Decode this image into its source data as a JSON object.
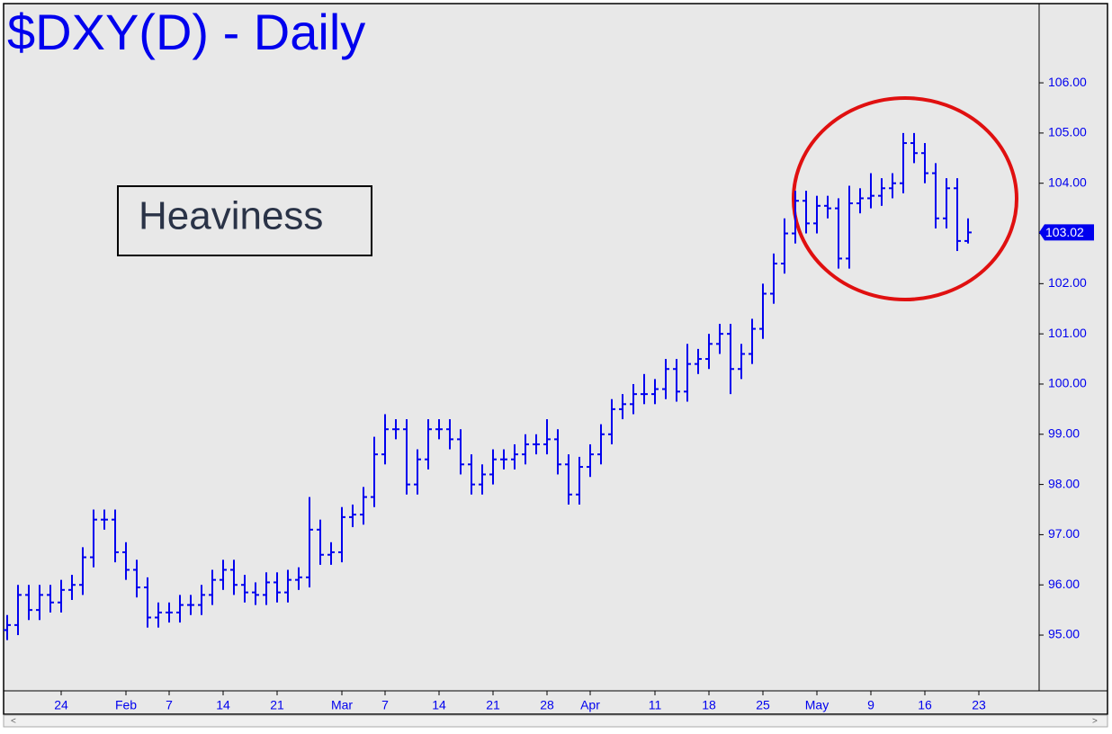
{
  "chart_data": {
    "type": "ohlc",
    "title": "$DXY(D) - Daily",
    "annotation": "Heaviness",
    "color": "#0000ee",
    "categories": [
      null,
      null,
      null,
      null,
      null,
      "24",
      null,
      null,
      null,
      null,
      null,
      "Feb",
      null,
      null,
      null,
      "7",
      null,
      null,
      null,
      null,
      "14",
      null,
      null,
      null,
      null,
      "21",
      null,
      null,
      null,
      null,
      null,
      "Mar",
      null,
      null,
      null,
      "7",
      null,
      null,
      null,
      null,
      "14",
      null,
      null,
      null,
      null,
      "21",
      null,
      null,
      null,
      null,
      "28",
      null,
      null,
      null,
      "Apr",
      null,
      null,
      null,
      null,
      null,
      "11",
      null,
      null,
      null,
      null,
      "18",
      null,
      null,
      null,
      null,
      "25",
      null,
      null,
      null,
      null,
      "May",
      null,
      null,
      null,
      null,
      "9",
      null,
      null,
      null,
      null,
      "16",
      null,
      null,
      null,
      null,
      "23"
    ],
    "open": [
      95.1,
      95.2,
      95.8,
      95.5,
      95.8,
      95.65,
      95.9,
      96.0,
      96.55,
      97.3,
      97.3,
      96.65,
      96.3,
      95.95,
      95.35,
      95.45,
      95.45,
      95.6,
      95.6,
      95.8,
      96.1,
      96.3,
      96.0,
      95.85,
      95.8,
      96.05,
      95.85,
      96.1,
      96.15,
      97.1,
      96.6,
      96.65,
      97.35,
      97.4,
      97.75,
      98.6,
      99.1,
      99.1,
      98.0,
      98.5,
      99.1,
      99.1,
      98.9,
      98.4,
      98.0,
      98.2,
      98.5,
      98.5,
      98.6,
      98.8,
      98.8,
      98.9,
      98.4,
      97.8,
      98.35,
      98.6,
      99.0,
      99.5,
      99.6,
      99.8,
      99.8,
      99.9,
      100.3,
      99.85,
      100.4,
      100.5,
      100.8,
      101.0,
      100.3,
      100.6,
      101.1,
      101.8,
      102.4,
      103.0,
      103.65,
      103.2,
      103.55,
      103.5,
      102.5,
      103.6,
      103.7,
      103.75,
      103.9,
      104.0,
      104.8,
      104.6,
      104.2,
      103.3,
      103.9,
      102.85,
      null
    ],
    "high": [
      95.4,
      96.0,
      96.0,
      96.0,
      96.0,
      96.1,
      96.2,
      96.75,
      97.5,
      97.5,
      97.5,
      96.85,
      96.5,
      96.15,
      95.65,
      95.65,
      95.8,
      95.8,
      96.0,
      96.3,
      96.5,
      96.5,
      96.2,
      96.05,
      96.25,
      96.25,
      96.3,
      96.35,
      97.75,
      97.3,
      96.85,
      97.55,
      97.6,
      97.95,
      98.95,
      99.4,
      99.3,
      99.3,
      98.7,
      99.3,
      99.3,
      99.3,
      99.1,
      98.6,
      98.4,
      98.7,
      98.7,
      98.8,
      99.0,
      99.0,
      99.3,
      99.1,
      98.6,
      98.55,
      98.8,
      99.2,
      99.7,
      99.8,
      100.0,
      100.2,
      100.1,
      100.5,
      100.5,
      100.8,
      100.7,
      101.0,
      101.2,
      101.2,
      100.8,
      101.3,
      102.0,
      102.6,
      103.3,
      103.85,
      103.85,
      103.75,
      103.75,
      103.7,
      103.95,
      103.9,
      104.2,
      104.1,
      104.2,
      105.0,
      105.0,
      104.8,
      104.4,
      104.1,
      104.1,
      103.3,
      null
    ],
    "low": [
      94.9,
      95.0,
      95.3,
      95.3,
      95.45,
      95.45,
      95.7,
      95.8,
      96.35,
      97.1,
      96.45,
      96.1,
      95.75,
      95.15,
      95.15,
      95.25,
      95.25,
      95.4,
      95.4,
      95.6,
      95.9,
      95.8,
      95.65,
      95.6,
      95.6,
      95.65,
      95.65,
      95.9,
      95.95,
      96.4,
      96.4,
      96.45,
      97.15,
      97.2,
      97.55,
      98.4,
      98.9,
      97.8,
      97.8,
      98.3,
      98.9,
      98.7,
      98.2,
      97.8,
      97.8,
      98.0,
      98.3,
      98.3,
      98.4,
      98.6,
      98.6,
      98.2,
      97.6,
      97.6,
      98.15,
      98.4,
      98.8,
      99.3,
      99.4,
      99.6,
      99.6,
      99.7,
      99.65,
      99.65,
      100.2,
      100.3,
      100.6,
      99.8,
      100.1,
      100.4,
      100.9,
      101.6,
      102.2,
      102.8,
      103.0,
      103.0,
      103.3,
      102.3,
      102.3,
      103.4,
      103.5,
      103.55,
      103.7,
      103.8,
      104.4,
      104.0,
      103.1,
      103.1,
      102.65,
      102.8,
      null
    ],
    "close": [
      95.2,
      95.8,
      95.5,
      95.8,
      95.65,
      95.9,
      96.0,
      96.55,
      97.3,
      97.3,
      96.65,
      96.3,
      95.95,
      95.35,
      95.45,
      95.45,
      95.6,
      95.6,
      95.8,
      96.1,
      96.3,
      96.0,
      95.85,
      95.8,
      96.05,
      95.85,
      96.1,
      96.15,
      97.1,
      96.6,
      96.65,
      97.35,
      97.4,
      97.75,
      98.6,
      99.1,
      99.1,
      98.0,
      98.5,
      99.1,
      99.1,
      98.9,
      98.4,
      98.0,
      98.2,
      98.5,
      98.5,
      98.6,
      98.8,
      98.8,
      98.9,
      98.4,
      97.8,
      98.35,
      98.6,
      99.0,
      99.5,
      99.6,
      99.8,
      99.8,
      99.9,
      100.3,
      99.85,
      100.4,
      100.5,
      100.8,
      101.0,
      100.3,
      100.6,
      101.1,
      101.8,
      102.4,
      103.0,
      103.65,
      103.2,
      103.55,
      103.5,
      102.5,
      103.6,
      103.7,
      103.75,
      103.9,
      104.0,
      104.8,
      104.6,
      104.2,
      103.3,
      103.9,
      102.85,
      103.02,
      null
    ],
    "ylim": [
      93.89,
      107.56
    ],
    "yticks": [
      {
        "value": 95,
        "label": "95.00"
      },
      {
        "value": 96,
        "label": "96.00"
      },
      {
        "value": 97,
        "label": "97.00"
      },
      {
        "value": 98,
        "label": "98.00"
      },
      {
        "value": 99,
        "label": "99.00"
      },
      {
        "value": 100,
        "label": "100.00"
      },
      {
        "value": 101,
        "label": "101.00"
      },
      {
        "value": 102,
        "label": "102.00"
      },
      {
        "value": 103,
        "label": "103.00"
      },
      {
        "value": 104,
        "label": "104.00"
      },
      {
        "value": 105,
        "label": "105.00"
      },
      {
        "value": 106,
        "label": "106.00"
      }
    ],
    "last_value_tag": true
  }
}
